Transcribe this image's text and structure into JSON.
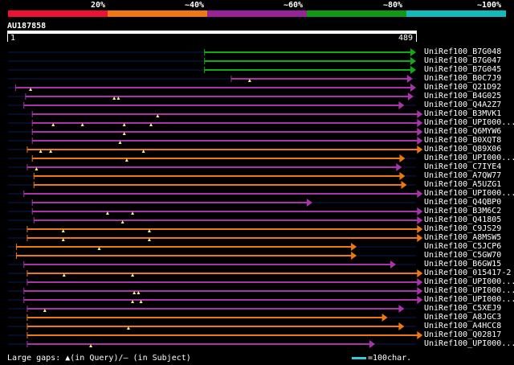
{
  "legend": {
    "labels": [
      "20%",
      "~40%",
      "~60%",
      "~80%",
      "~100%"
    ],
    "colors": [
      "#ee1133",
      "#ee7711",
      "#992299",
      "#119911",
      "#11bbbb"
    ]
  },
  "query": {
    "id": "AU187858",
    "start_tick": "1",
    "end_tick": "489",
    "length": 489
  },
  "hits": [
    {
      "name": "UniRef100_B7G048",
      "color": "#11aa11",
      "start": 236,
      "end": 489,
      "gaps": []
    },
    {
      "name": "UniRef100_B7G047",
      "color": "#11aa11",
      "start": 236,
      "end": 489,
      "gaps": []
    },
    {
      "name": "UniRef100_B7G045",
      "color": "#11aa11",
      "start": 236,
      "end": 489,
      "gaps": []
    },
    {
      "name": "UniRef100_B0C7J9",
      "color": "#aa33aa",
      "start": 268,
      "end": 485,
      "gaps": [
        290
      ]
    },
    {
      "name": "UniRef100_Q21D92",
      "color": "#aa33aa",
      "start": 10,
      "end": 489,
      "gaps": [
        28
      ]
    },
    {
      "name": "UniRef100_B4G025",
      "color": "#aa33aa",
      "start": 22,
      "end": 486,
      "gaps": [
        128,
        133
      ]
    },
    {
      "name": "UniRef100_Q4A2Z7",
      "color": "#aa33aa",
      "start": 20,
      "end": 475,
      "gaps": []
    },
    {
      "name": "UniRef100_B3MVK1",
      "color": "#aa33aa",
      "start": 30,
      "end": 497,
      "gaps": [
        180
      ]
    },
    {
      "name": "UniRef100_UPI000...",
      "color": "#aa33aa",
      "start": 30,
      "end": 497,
      "gaps": [
        55,
        90,
        140,
        172
      ]
    },
    {
      "name": "UniRef100_Q6MYW6",
      "color": "#aa33aa",
      "start": 30,
      "end": 497,
      "gaps": [
        140
      ]
    },
    {
      "name": "UniRef100_B0XQT8",
      "color": "#aa33aa",
      "start": 30,
      "end": 497,
      "gaps": [
        135
      ]
    },
    {
      "name": "UniRef100_Q89X06",
      "color": "#ee7711",
      "start": 24,
      "end": 497,
      "gaps": [
        40,
        52,
        163
      ]
    },
    {
      "name": "UniRef100_UPI000...",
      "color": "#ee7711",
      "start": 30,
      "end": 476,
      "gaps": [
        143
      ]
    },
    {
      "name": "UniRef100_C7IYE4",
      "color": "#aa33aa",
      "start": 24,
      "end": 472,
      "gaps": [
        35
      ]
    },
    {
      "name": "UniRef100_A7QW77",
      "color": "#ee7711",
      "start": 32,
      "end": 476,
      "gaps": []
    },
    {
      "name": "UniRef100_A5UZG1",
      "color": "#ee7711",
      "start": 32,
      "end": 478,
      "gaps": []
    },
    {
      "name": "UniRef100_UPI000...",
      "color": "#aa33aa",
      "start": 20,
      "end": 497,
      "gaps": []
    },
    {
      "name": "UniRef100_Q4QBP0",
      "color": "#aa33aa",
      "start": 30,
      "end": 365,
      "gaps": []
    },
    {
      "name": "UniRef100_B3M6C2",
      "color": "#aa33aa",
      "start": 30,
      "end": 497,
      "gaps": [
        120,
        150
      ]
    },
    {
      "name": "UniRef100_Q41805",
      "color": "#aa33aa",
      "start": 32,
      "end": 497,
      "gaps": [
        138
      ]
    },
    {
      "name": "UniRef100_C9JS29",
      "color": "#ee7711",
      "start": 24,
      "end": 497,
      "gaps": [
        67,
        170
      ]
    },
    {
      "name": "UniRef100_A8MSW5",
      "color": "#ee7711",
      "start": 24,
      "end": 497,
      "gaps": [
        67,
        170
      ]
    },
    {
      "name": "UniRef100_C5JCP6",
      "color": "#ee7711",
      "start": 11,
      "end": 418,
      "gaps": [
        110
      ]
    },
    {
      "name": "UniRef100_C5GW70",
      "color": "#ee7711",
      "start": 11,
      "end": 418,
      "gaps": []
    },
    {
      "name": "UniRef100_B6GW15",
      "color": "#aa33aa",
      "start": 20,
      "end": 465,
      "gaps": []
    },
    {
      "name": "UniRef100_015417-2",
      "color": "#ee7711",
      "start": 24,
      "end": 497,
      "gaps": [
        68,
        150
      ]
    },
    {
      "name": "UniRef100_UPI000...",
      "color": "#aa33aa",
      "start": 24,
      "end": 497,
      "gaps": []
    },
    {
      "name": "UniRef100_UPI000...",
      "color": "#aa33aa",
      "start": 20,
      "end": 497,
      "gaps": [
        152,
        157
      ]
    },
    {
      "name": "UniRef100_UPI000...",
      "color": "#aa33aa",
      "start": 20,
      "end": 497,
      "gaps": [
        150,
        160
      ]
    },
    {
      "name": "UniRef100_C5XEJ9",
      "color": "#aa33aa",
      "start": 24,
      "end": 475,
      "gaps": [
        45
      ]
    },
    {
      "name": "UniRef100_A8JGC3",
      "color": "#ee7711",
      "start": 24,
      "end": 455,
      "gaps": []
    },
    {
      "name": "UniRef100_A4HCC8",
      "color": "#ee7711",
      "start": 24,
      "end": 475,
      "gaps": [
        145
      ]
    },
    {
      "name": "UniRef100_Q02817",
      "color": "#ee7711",
      "start": 24,
      "end": 497,
      "gaps": []
    },
    {
      "name": "UniRef100_UPI000...",
      "color": "#aa33aa",
      "start": 24,
      "end": 440,
      "gaps": [
        100
      ]
    }
  ],
  "footer": {
    "gaps_text": "Large gaps: ▲(in Query)/‒ (in Subject)",
    "scale_text": "=100char."
  }
}
